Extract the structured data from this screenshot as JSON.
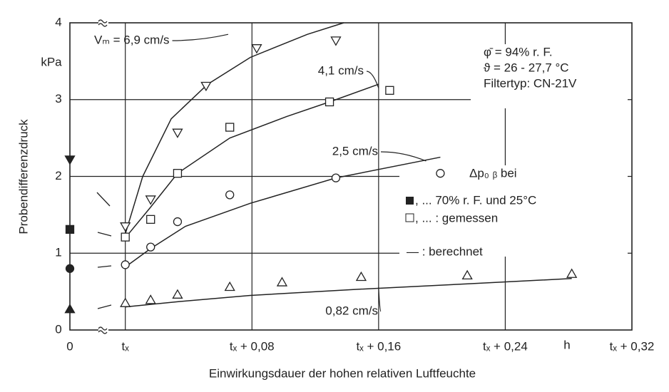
{
  "chart_data": {
    "type": "scatter",
    "y_label": "Probendifferenzdruck",
    "y_unit": "kPa",
    "x_label": "Einwirkungsdauer der hohen relativen Luftfeuchte",
    "x_unit": "h",
    "xlim": [
      -0.035,
      0.32
    ],
    "ylim": [
      0,
      4
    ],
    "xticks": [
      {
        "value": -0.035,
        "label": "0"
      },
      {
        "value": 0,
        "label": "tₓ"
      },
      {
        "value": 0.08,
        "label": "tₓ + 0,08"
      },
      {
        "value": 0.16,
        "label": "tₓ + 0,16"
      },
      {
        "value": 0.24,
        "label": "tₓ + 0,24"
      },
      {
        "value": 0.32,
        "label": "tₓ + 0,32"
      }
    ],
    "yticks": [
      0,
      1,
      2,
      3,
      4
    ],
    "grid": true,
    "color": "#222222",
    "conditions": [
      "φ̄ = 94% r. F.",
      "ϑ = 26 - 27,7 °C",
      "Filtertyp: CN-21V"
    ],
    "legend": [
      "Δp₀ ᵦ bei",
      ", ... 70% r. F. und 25°C",
      ", ... : gemessen",
      "— : berechnet"
    ],
    "reference_points": {
      "x": [
        -0.035,
        -0.035,
        -0.035,
        -0.035
      ],
      "values": [
        2.22,
        1.31,
        0.8,
        0.27
      ],
      "markers": [
        "triangle-down",
        "square",
        "circle",
        "triangle-up"
      ]
    },
    "series": [
      {
        "name": "Vₘ = 6,9 cm/s",
        "marker": "triangle-down",
        "x": [
          0,
          0.016,
          0.033,
          0.051,
          0.083,
          0.133
        ],
        "values": [
          1.35,
          1.7,
          2.57,
          3.18,
          3.67,
          3.77
        ],
        "curve_x": [
          0,
          0.011,
          0.029,
          0.052,
          0.079,
          0.115,
          0.138
        ],
        "curve_values": [
          1.25,
          2.0,
          2.75,
          3.2,
          3.55,
          3.85,
          4.0
        ]
      },
      {
        "name": "4,1 cm/s",
        "marker": "square",
        "x": [
          0,
          0.016,
          0.033,
          0.066,
          0.129,
          0.167
        ],
        "values": [
          1.21,
          1.44,
          2.04,
          2.64,
          2.97,
          3.12
        ],
        "curve_x": [
          0,
          0.016,
          0.033,
          0.066,
          0.102,
          0.129,
          0.16
        ],
        "curve_values": [
          1.2,
          1.6,
          2.04,
          2.5,
          2.78,
          2.97,
          3.2
        ]
      },
      {
        "name": "2,5 cm/s",
        "marker": "circle",
        "x": [
          0,
          0.016,
          0.033,
          0.066,
          0.133,
          0.199
        ],
        "values": [
          0.85,
          1.08,
          1.41,
          1.76,
          1.98,
          2.04
        ],
        "curve_x": [
          0,
          0.016,
          0.038,
          0.079,
          0.133,
          0.199
        ],
        "curve_values": [
          0.82,
          1.06,
          1.35,
          1.65,
          1.98,
          2.25
        ]
      },
      {
        "name": "0,82 cm/s",
        "marker": "triangle-up",
        "x": [
          0,
          0.016,
          0.033,
          0.066,
          0.099,
          0.149,
          0.216,
          0.282
        ],
        "values": [
          0.35,
          0.39,
          0.46,
          0.56,
          0.62,
          0.69,
          0.71,
          0.73
        ],
        "curve_x": [
          0,
          0.034,
          0.079,
          0.147,
          0.215,
          0.282
        ],
        "curve_values": [
          0.3,
          0.37,
          0.45,
          0.53,
          0.6,
          0.67
        ]
      }
    ]
  }
}
